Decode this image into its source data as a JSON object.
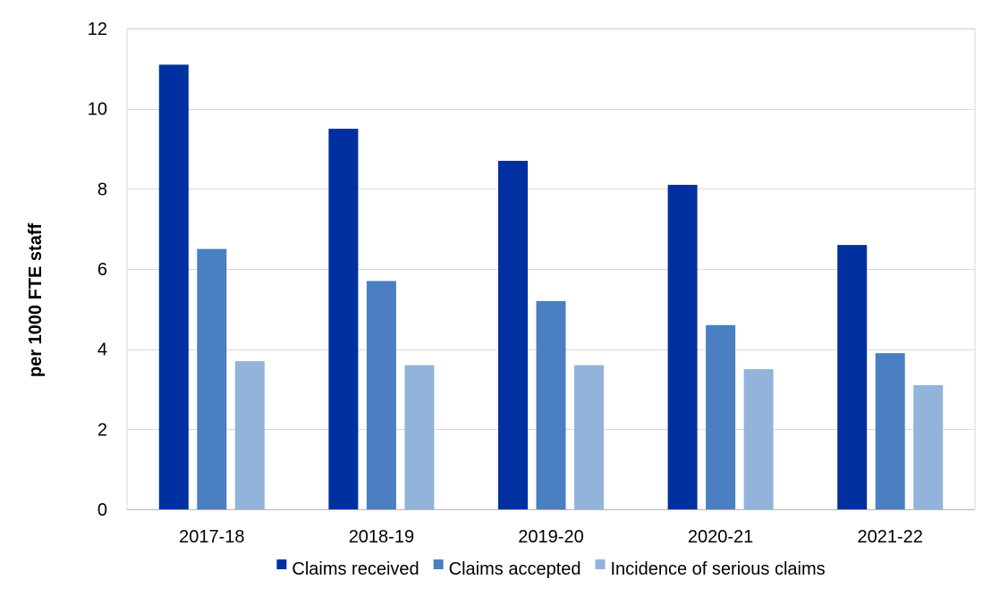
{
  "chart_data": {
    "type": "bar",
    "title": "",
    "xlabel": "",
    "ylabel": "per 1000 FTE staff",
    "categories": [
      "2017-18",
      "2018-19",
      "2019-20",
      "2020-21",
      "2021-22"
    ],
    "series": [
      {
        "name": "Claims received",
        "color": "#0030A0",
        "values": [
          11.1,
          9.5,
          8.7,
          8.1,
          6.6
        ]
      },
      {
        "name": "Claims accepted",
        "color": "#4A7FC1",
        "values": [
          6.5,
          5.7,
          5.2,
          4.6,
          3.9
        ]
      },
      {
        "name": "Incidence of serious claims",
        "color": "#92B3DA",
        "values": [
          3.7,
          3.6,
          3.6,
          3.5,
          3.1
        ]
      }
    ],
    "ylim": [
      0,
      12
    ],
    "yticks": [
      0,
      2,
      4,
      6,
      8,
      10,
      12
    ],
    "grid": true,
    "legend_position": "bottom"
  }
}
